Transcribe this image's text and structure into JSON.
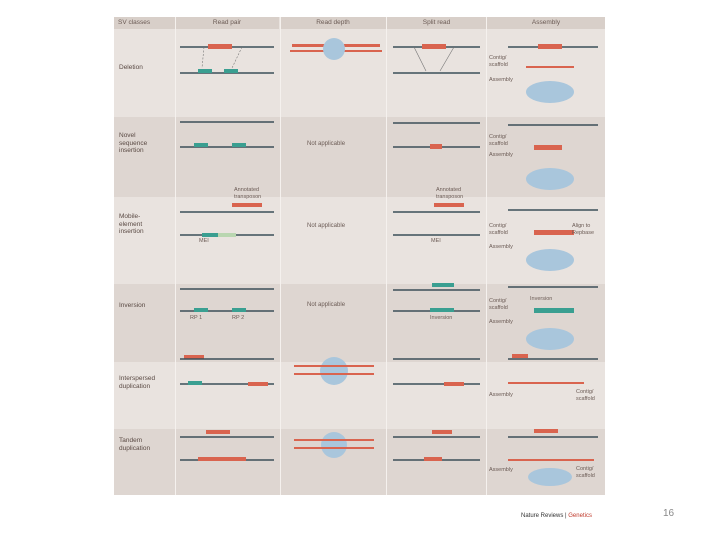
{
  "headers": [
    "SV classes",
    "Read pair",
    "Read depth",
    "Split read",
    "Assembly"
  ],
  "rows": [
    {
      "label": "Deletion",
      "rp1": "",
      "rp2": ""
    },
    {
      "label": "Novel sequence insertion"
    },
    {
      "label": "Mobile-element insertion"
    },
    {
      "label": "Inversion"
    },
    {
      "label": "Interspersed duplication"
    },
    {
      "label": "Tandem duplication"
    }
  ],
  "not_applicable": "Not applicable",
  "annotations": {
    "contig": "Contig/ scaffold",
    "assembly": "Assembly",
    "annotated_transposon": "Annotated transposon",
    "mei": "MEI",
    "align_repbase": "Align to Repbase",
    "inversion": "Inversion",
    "rp1": "RP 1",
    "rp2": "RP 2",
    "contig_scaffold_after": "Contig/ scaffold"
  },
  "credit": {
    "journal": "Nature Reviews",
    "sep": " | ",
    "section": "Genetics"
  },
  "page_number": "16",
  "colors": {
    "red": "#d9644f",
    "teal": "#3a9f91",
    "line": "#3b4f58",
    "blue": "#a9c6dc",
    "bg": "#e9e3df"
  }
}
